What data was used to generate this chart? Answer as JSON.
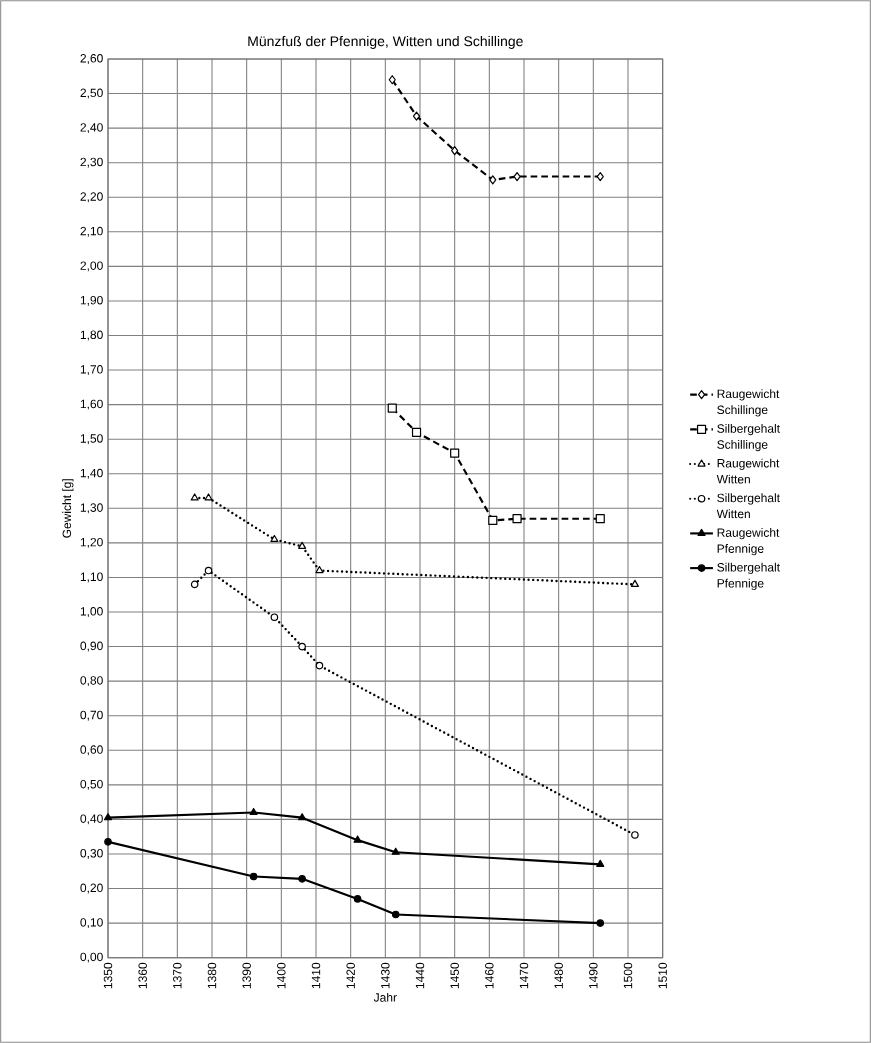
{
  "chart_data": {
    "type": "line",
    "title": "Münzfuß der Pfennige, Witten und Schillinge",
    "xlabel": "Jahr",
    "ylabel": "Gewicht [g]",
    "xlim": [
      1350,
      1510
    ],
    "xticks": [
      1350,
      1360,
      1370,
      1380,
      1390,
      1400,
      1410,
      1420,
      1430,
      1440,
      1450,
      1460,
      1470,
      1480,
      1490,
      1500,
      1510
    ],
    "ylim": [
      0,
      2.6
    ],
    "yticks": [
      {
        "value": 0,
        "label": "0,00"
      },
      {
        "value": 0.1,
        "label": "0,10"
      },
      {
        "value": 0.2,
        "label": "0,20"
      },
      {
        "value": 0.3,
        "label": "0,30"
      },
      {
        "value": 0.4,
        "label": "0,40"
      },
      {
        "value": 0.5,
        "label": "0,50"
      },
      {
        "value": 0.6,
        "label": "0,60"
      },
      {
        "value": 0.7,
        "label": "0,70"
      },
      {
        "value": 0.8,
        "label": "0,80"
      },
      {
        "value": 0.9,
        "label": "0,90"
      },
      {
        "value": 1.0,
        "label": "1,00"
      },
      {
        "value": 1.1,
        "label": "1,10"
      },
      {
        "value": 1.2,
        "label": "1,20"
      },
      {
        "value": 1.3,
        "label": "1,30"
      },
      {
        "value": 1.4,
        "label": "1,40"
      },
      {
        "value": 1.5,
        "label": "1,50"
      },
      {
        "value": 1.6,
        "label": "1,60"
      },
      {
        "value": 1.7,
        "label": "1,70"
      },
      {
        "value": 1.8,
        "label": "1,80"
      },
      {
        "value": 1.9,
        "label": "1,90"
      },
      {
        "value": 2.0,
        "label": "2,00"
      },
      {
        "value": 2.1,
        "label": "2,10"
      },
      {
        "value": 2.2,
        "label": "2,20"
      },
      {
        "value": 2.3,
        "label": "2,30"
      },
      {
        "value": 2.4,
        "label": "2,40"
      },
      {
        "value": 2.5,
        "label": "2,50"
      },
      {
        "value": 2.6,
        "label": "2,60"
      }
    ],
    "grid": true,
    "legend": "right",
    "series": [
      {
        "name": "Raugewicht Schillinge",
        "color": "#000000",
        "marker": "diamond",
        "line_style": "dashed",
        "x": [
          1432,
          1439,
          1450,
          1461,
          1468,
          1492
        ],
        "values": [
          2.54,
          2.435,
          2.335,
          2.25,
          2.26,
          2.26
        ]
      },
      {
        "name": "Silbergehalt Schillinge",
        "color": "#000000",
        "marker": "square",
        "line_style": "dashed",
        "x": [
          1432,
          1439,
          1450,
          1461,
          1468,
          1492
        ],
        "values": [
          1.59,
          1.52,
          1.46,
          1.265,
          1.27,
          1.27
        ]
      },
      {
        "name": "Raugewicht Witten",
        "color": "#000000",
        "marker": "triangle",
        "line_style": "dotted",
        "x": [
          1375,
          1379,
          1398,
          1406,
          1411,
          1502
        ],
        "values": [
          1.33,
          1.33,
          1.21,
          1.19,
          1.12,
          1.08
        ]
      },
      {
        "name": "Silbergehalt Witten",
        "color": "#000000",
        "marker": "circle",
        "line_style": "dotted",
        "x": [
          1375,
          1379,
          1398,
          1406,
          1411,
          1502
        ],
        "values": [
          1.08,
          1.12,
          0.985,
          0.9,
          0.845,
          0.355
        ]
      },
      {
        "name": "Raugewicht Pfennige",
        "color": "#000000",
        "marker": "triangle",
        "line_style": "solid",
        "x": [
          1350,
          1392,
          1406,
          1422,
          1433,
          1492
        ],
        "values": [
          0.405,
          0.42,
          0.405,
          0.34,
          0.305,
          0.27
        ]
      },
      {
        "name": "Silbergehalt Pfennige",
        "color": "#000000",
        "marker": "circle",
        "line_style": "solid",
        "x": [
          1350,
          1392,
          1406,
          1422,
          1433,
          1492
        ],
        "values": [
          0.335,
          0.235,
          0.228,
          0.17,
          0.125,
          0.1
        ]
      }
    ]
  }
}
